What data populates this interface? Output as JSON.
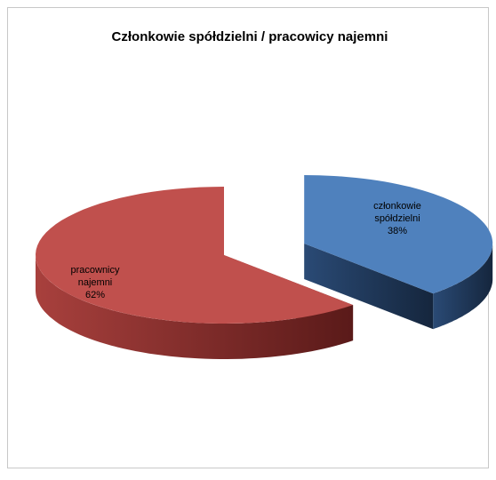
{
  "chart_data": {
    "type": "pie3d",
    "title": "Członkowie spółdzielni / pracowicy najemni",
    "categories": [
      "członkowie spółdzielni",
      "pracownicy najemni"
    ],
    "values": [
      38,
      62
    ],
    "value_labels": [
      "38%",
      "62%"
    ],
    "series": [
      {
        "name": "członkowie spółdzielni",
        "color": "#4f81bd"
      },
      {
        "name": "pracownicy najemni",
        "color": "#c0504d"
      }
    ],
    "colors": [
      "#4f81bd",
      "#c0504d"
    ]
  }
}
